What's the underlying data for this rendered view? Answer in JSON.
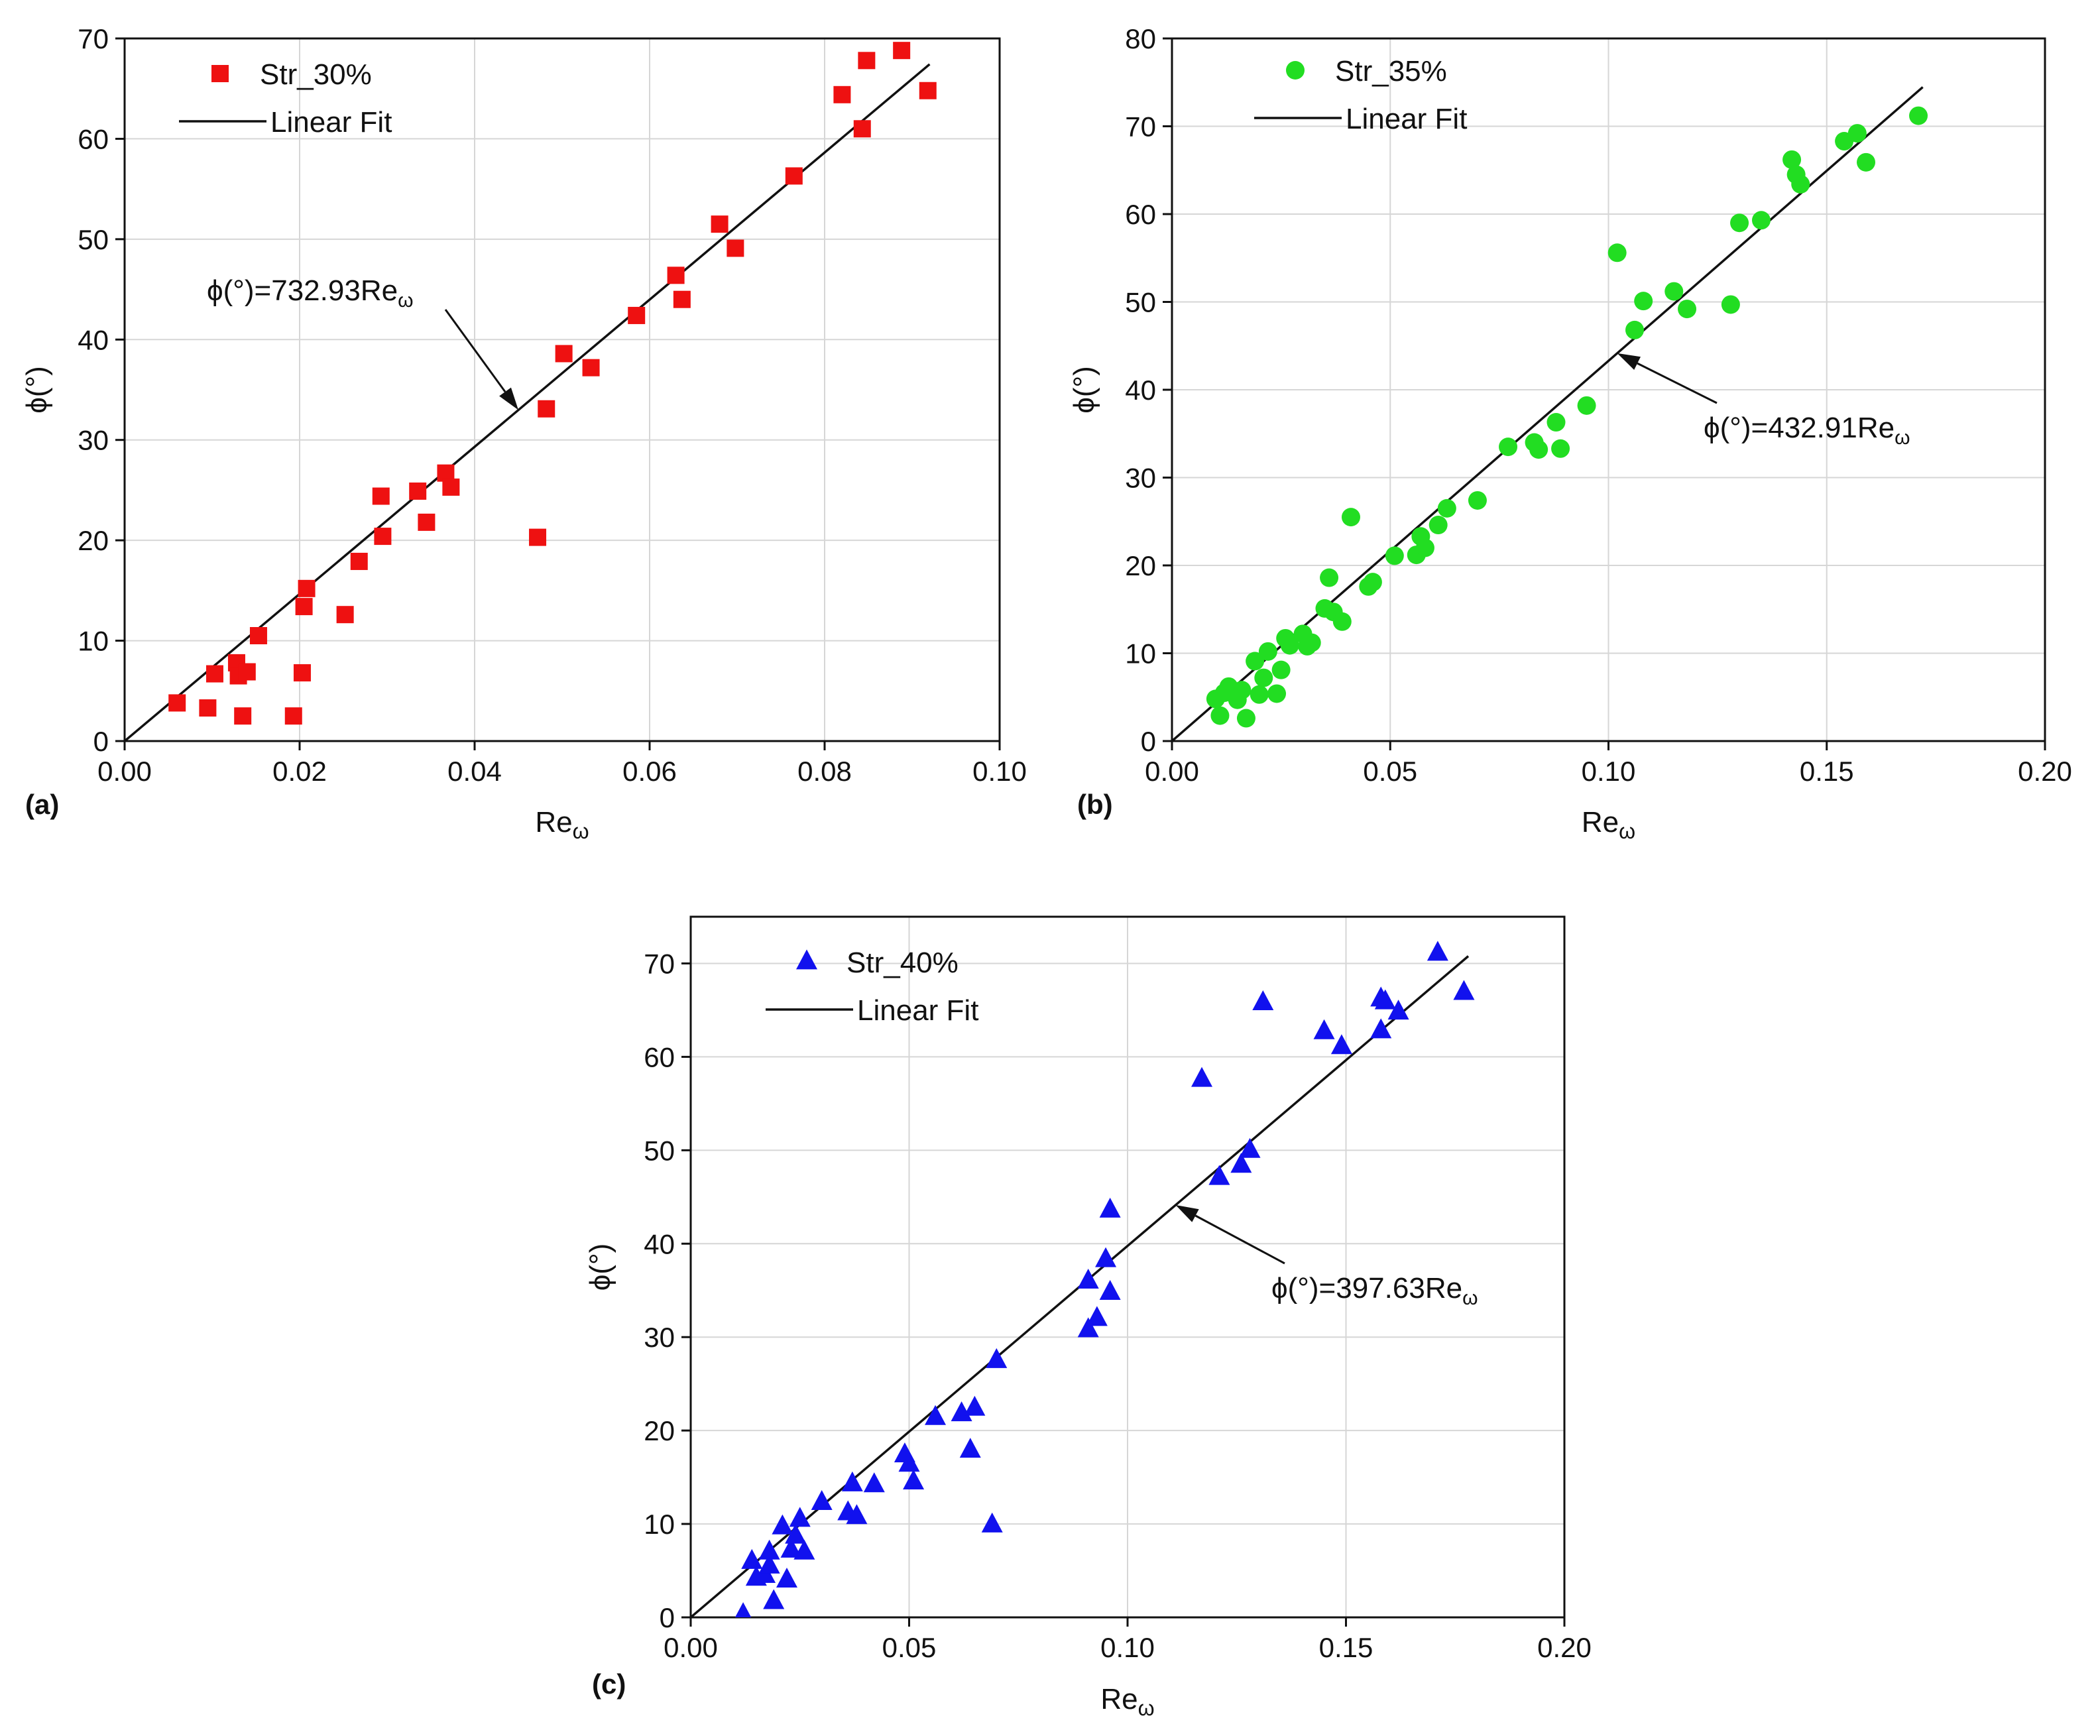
{
  "chart_data": [
    {
      "panel_label": "(a)",
      "type": "scatter",
      "title": "",
      "xlabel": "Re",
      "xlabel_sub": "ω",
      "ylabel": "ϕ(°)",
      "xlim": [
        0,
        0.1
      ],
      "ylim": [
        0,
        70
      ],
      "xticks": [
        0,
        0.02,
        0.04,
        0.06,
        0.08,
        0.1
      ],
      "xtick_labels": [
        "0.00",
        "0.02",
        "0.04",
        "0.06",
        "0.08",
        "0.10"
      ],
      "yticks": [
        0,
        10,
        20,
        30,
        40,
        50,
        60,
        70
      ],
      "ytick_labels": [
        "0",
        "10",
        "20",
        "30",
        "40",
        "50",
        "60",
        "70"
      ],
      "grid": true,
      "marker": "square",
      "color": "#ee1111",
      "legend": {
        "placement": "top-left",
        "series_label": "Str_30%",
        "fit_label": "Linear Fit"
      },
      "fit": {
        "slope": 732.93,
        "x_end": 0.092
      },
      "annotation": {
        "text": "ϕ(°)=732.93Re",
        "sub": "ω",
        "arrow_to_x": 0.045
      },
      "points": [
        [
          0.006,
          3.8
        ],
        [
          0.0095,
          3.3
        ],
        [
          0.0103,
          6.7
        ],
        [
          0.0128,
          7.8
        ],
        [
          0.013,
          6.5
        ],
        [
          0.0135,
          2.5
        ],
        [
          0.014,
          6.9
        ],
        [
          0.0153,
          10.5
        ],
        [
          0.0193,
          2.5
        ],
        [
          0.0203,
          6.8
        ],
        [
          0.0205,
          13.4
        ],
        [
          0.0208,
          15.2
        ],
        [
          0.0252,
          12.6
        ],
        [
          0.0268,
          17.9
        ],
        [
          0.0293,
          24.4
        ],
        [
          0.0295,
          20.4
        ],
        [
          0.0335,
          24.9
        ],
        [
          0.0345,
          21.8
        ],
        [
          0.0367,
          26.7
        ],
        [
          0.0373,
          25.3
        ],
        [
          0.0472,
          20.3
        ],
        [
          0.0482,
          33.1
        ],
        [
          0.0502,
          38.6
        ],
        [
          0.0533,
          37.2
        ],
        [
          0.0585,
          42.4
        ],
        [
          0.063,
          46.4
        ],
        [
          0.0637,
          44
        ],
        [
          0.068,
          51.5
        ],
        [
          0.0698,
          49.1
        ],
        [
          0.0765,
          56.3
        ],
        [
          0.082,
          64.4
        ],
        [
          0.0843,
          61
        ],
        [
          0.0848,
          67.8
        ],
        [
          0.0888,
          68.8
        ],
        [
          0.0918,
          64.8
        ]
      ]
    },
    {
      "panel_label": "(b)",
      "type": "scatter",
      "title": "",
      "xlabel": "Re",
      "xlabel_sub": "ω",
      "ylabel": "ϕ(°)",
      "xlim": [
        0,
        0.2
      ],
      "ylim": [
        0,
        80
      ],
      "xticks": [
        0,
        0.05,
        0.1,
        0.15,
        0.2
      ],
      "xtick_labels": [
        "0.00",
        "0.05",
        "0.10",
        "0.15",
        "0.20"
      ],
      "yticks": [
        0,
        10,
        20,
        30,
        40,
        50,
        60,
        70,
        80
      ],
      "ytick_labels": [
        "0",
        "10",
        "20",
        "30",
        "40",
        "50",
        "60",
        "70",
        "80"
      ],
      "grid": true,
      "marker": "circle",
      "color": "#22dd22",
      "legend": {
        "placement": "top-left",
        "series_label": "Str_35%",
        "fit_label": "Linear Fit"
      },
      "fit": {
        "slope": 432.91,
        "x_end": 0.172
      },
      "annotation": {
        "text": "ϕ(°)=432.91Re",
        "sub": "ω",
        "arrow_to_x": 0.102
      },
      "points": [
        [
          0.01,
          4.8
        ],
        [
          0.011,
          2.9
        ],
        [
          0.012,
          5.5
        ],
        [
          0.013,
          6.2
        ],
        [
          0.015,
          4.7
        ],
        [
          0.016,
          5.8
        ],
        [
          0.017,
          2.6
        ],
        [
          0.019,
          9.1
        ],
        [
          0.02,
          5.3
        ],
        [
          0.021,
          7.2
        ],
        [
          0.022,
          10.2
        ],
        [
          0.024,
          5.4
        ],
        [
          0.025,
          8.1
        ],
        [
          0.026,
          11.7
        ],
        [
          0.027,
          10.9
        ],
        [
          0.03,
          12.2
        ],
        [
          0.031,
          10.8
        ],
        [
          0.032,
          11.2
        ],
        [
          0.035,
          15.1
        ],
        [
          0.036,
          18.6
        ],
        [
          0.037,
          14.7
        ],
        [
          0.039,
          13.6
        ],
        [
          0.041,
          25.5
        ],
        [
          0.045,
          17.6
        ],
        [
          0.046,
          18.1
        ],
        [
          0.051,
          21.1
        ],
        [
          0.056,
          21.2
        ],
        [
          0.057,
          23.3
        ],
        [
          0.058,
          22.0
        ],
        [
          0.061,
          24.6
        ],
        [
          0.063,
          26.5
        ],
        [
          0.07,
          27.4
        ],
        [
          0.077,
          33.5
        ],
        [
          0.083,
          34.0
        ],
        [
          0.084,
          33.2
        ],
        [
          0.088,
          36.3
        ],
        [
          0.089,
          33.3
        ],
        [
          0.095,
          38.2
        ],
        [
          0.102,
          55.6
        ],
        [
          0.106,
          46.8
        ],
        [
          0.108,
          50.1
        ],
        [
          0.115,
          51.2
        ],
        [
          0.118,
          49.2
        ],
        [
          0.128,
          49.7
        ],
        [
          0.13,
          59.0
        ],
        [
          0.135,
          59.3
        ],
        [
          0.142,
          66.2
        ],
        [
          0.143,
          64.5
        ],
        [
          0.144,
          63.4
        ],
        [
          0.154,
          68.3
        ],
        [
          0.157,
          69.2
        ],
        [
          0.159,
          65.9
        ],
        [
          0.171,
          71.2
        ]
      ]
    },
    {
      "panel_label": "(c)",
      "type": "scatter",
      "title": "",
      "xlabel": "Re",
      "xlabel_sub": "ω",
      "ylabel": "ϕ(°)",
      "xlim": [
        0,
        0.2
      ],
      "ylim": [
        0,
        75
      ],
      "xticks": [
        0,
        0.05,
        0.1,
        0.15,
        0.2
      ],
      "xtick_labels": [
        "0.00",
        "0.05",
        "0.10",
        "0.15",
        "0.20"
      ],
      "yticks": [
        0,
        10,
        20,
        30,
        40,
        50,
        60,
        70
      ],
      "ytick_labels": [
        "0",
        "10",
        "20",
        "30",
        "40",
        "50",
        "60",
        "70"
      ],
      "grid": true,
      "marker": "triangle",
      "color": "#1111ee",
      "legend": {
        "placement": "top-left",
        "series_label": "Str_40%",
        "fit_label": "Linear Fit"
      },
      "fit": {
        "slope": 397.63,
        "x_end": 0.178
      },
      "annotation": {
        "text": "ϕ(°)=397.63Re",
        "sub": "ω",
        "arrow_to_x": 0.111
      },
      "points": [
        [
          0.012,
          0.3
        ],
        [
          0.014,
          6.0
        ],
        [
          0.015,
          4.2
        ],
        [
          0.017,
          4.5
        ],
        [
          0.018,
          7.0
        ],
        [
          0.018,
          5.5
        ],
        [
          0.019,
          1.7
        ],
        [
          0.021,
          9.7
        ],
        [
          0.022,
          4.0
        ],
        [
          0.023,
          7.2
        ],
        [
          0.024,
          8.7
        ],
        [
          0.025,
          10.5
        ],
        [
          0.026,
          7.0
        ],
        [
          0.03,
          12.3
        ],
        [
          0.036,
          11.2
        ],
        [
          0.037,
          14.3
        ],
        [
          0.038,
          10.8
        ],
        [
          0.042,
          14.2
        ],
        [
          0.049,
          17.4
        ],
        [
          0.05,
          16.4
        ],
        [
          0.051,
          14.5
        ],
        [
          0.056,
          21.4
        ],
        [
          0.062,
          21.8
        ],
        [
          0.064,
          17.9
        ],
        [
          0.065,
          22.4
        ],
        [
          0.069,
          9.9
        ],
        [
          0.07,
          27.5
        ],
        [
          0.091,
          36.0
        ],
        [
          0.091,
          30.8
        ],
        [
          0.093,
          32.0
        ],
        [
          0.095,
          38.3
        ],
        [
          0.096,
          43.6
        ],
        [
          0.096,
          34.8
        ],
        [
          0.117,
          57.6
        ],
        [
          0.121,
          47.1
        ],
        [
          0.126,
          48.4
        ],
        [
          0.128,
          50.0
        ],
        [
          0.131,
          65.8
        ],
        [
          0.145,
          62.7
        ],
        [
          0.149,
          61.1
        ],
        [
          0.158,
          62.8
        ],
        [
          0.158,
          66.2
        ],
        [
          0.159,
          65.9
        ],
        [
          0.162,
          64.8
        ],
        [
          0.171,
          71.1
        ],
        [
          0.177,
          66.9
        ]
      ]
    }
  ]
}
